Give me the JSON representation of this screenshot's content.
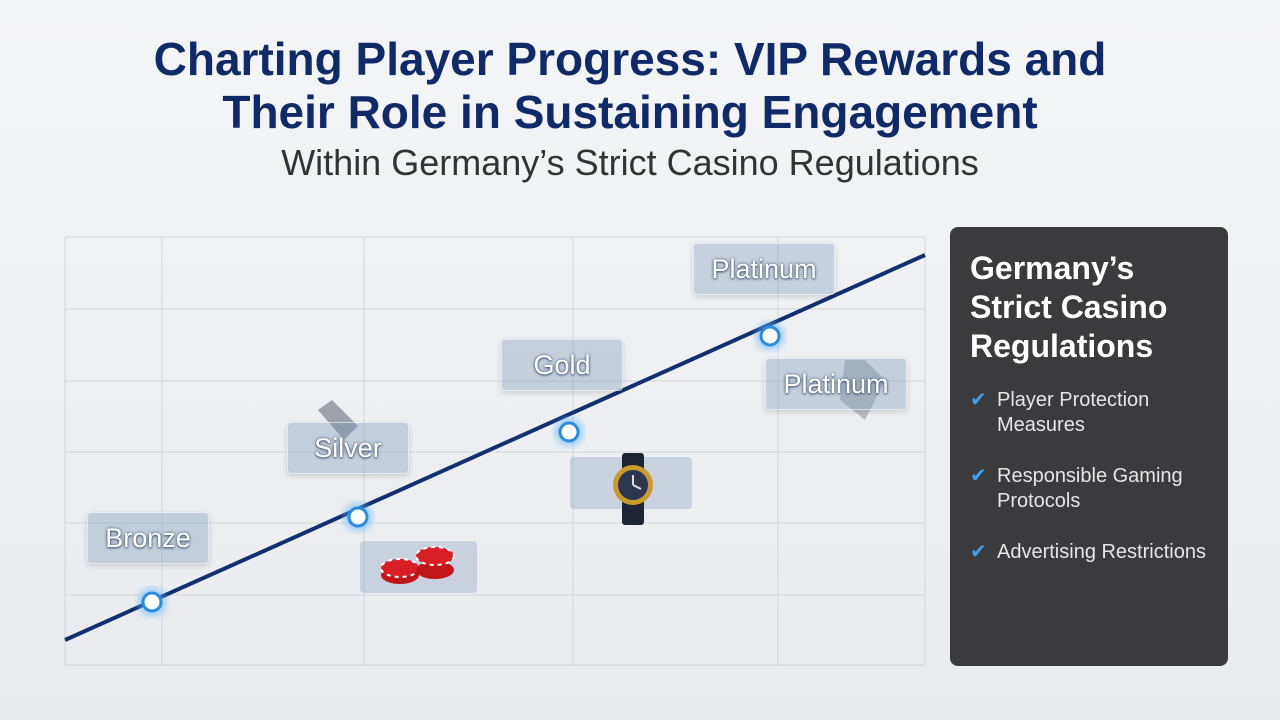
{
  "header": {
    "title_lines": [
      "Charting Player Progress: VIP Rewards and",
      "Their Role in Sustaining Engagement"
    ],
    "subtitle": "Within Germany’s Strict Casino Regulations"
  },
  "tiers": [
    "Bronze",
    "Silver",
    "Gold",
    "Platinum",
    "Platinum"
  ],
  "panel": {
    "title": "Germany’s Strict Casino Regulations",
    "items": [
      "Player Protection Measures",
      "Responsible Gaming Protocols",
      "Advertising Restrictions"
    ]
  }
}
